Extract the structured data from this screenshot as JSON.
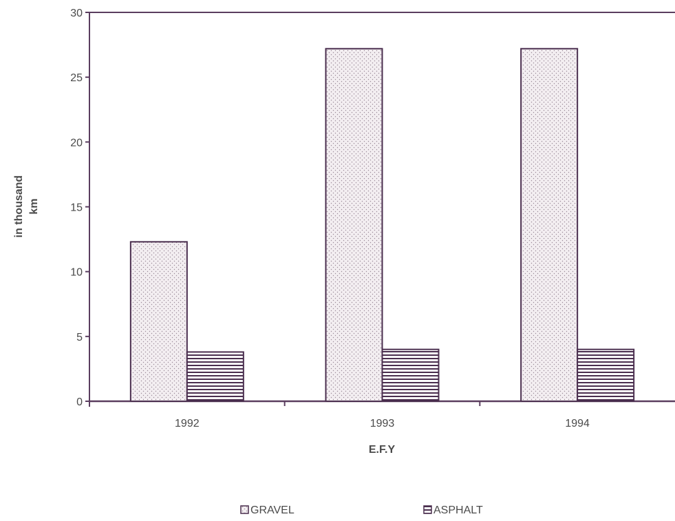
{
  "chart_data": {
    "type": "bar",
    "categories": [
      "1992",
      "1993",
      "1994"
    ],
    "series": [
      {
        "name": "GRAVEL",
        "values": [
          12.3,
          27.2,
          27.2
        ],
        "pattern": "dots"
      },
      {
        "name": "ASPHALT",
        "values": [
          3.8,
          4.0,
          4.0
        ],
        "pattern": "horizontal-lines"
      }
    ],
    "title": "",
    "xlabel": "E.F.Y",
    "ylabel_lines": [
      "in thousand",
      "km"
    ],
    "ylim": [
      0,
      30
    ],
    "yticks": [
      "0",
      "5",
      "10",
      "15",
      "20",
      "25",
      "30"
    ],
    "grid": false,
    "legend_position": "bottom"
  },
  "colors": {
    "axis": "#5a3d5f",
    "bar_stroke": "#4a2e4e",
    "gravel_fill": "#f1ecef",
    "asphalt_line": "#4a2e4e",
    "text": "#4a4a4a"
  }
}
